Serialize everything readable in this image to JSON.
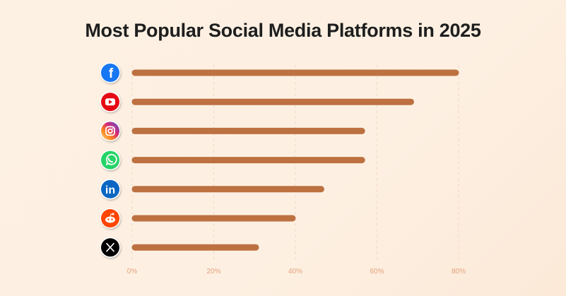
{
  "chart_data": {
    "type": "bar",
    "orientation": "horizontal",
    "title": "Most Popular Social Media Platforms in 2025",
    "xlabel": "",
    "ylabel": "",
    "xlim": [
      0,
      80
    ],
    "x_ticks": [
      "0%",
      "20%",
      "40%",
      "60%",
      "80%"
    ],
    "x_tick_values": [
      0,
      20,
      40,
      60,
      80
    ],
    "grid": "vertical dashed",
    "bar_color": "#bd7140",
    "categories": [
      {
        "icon": "facebook-icon",
        "color": "#1877f2"
      },
      {
        "icon": "youtube-icon",
        "color": "#e50914"
      },
      {
        "icon": "instagram-icon",
        "color": "#c13584"
      },
      {
        "icon": "whatsapp-icon",
        "color": "#25d366"
      },
      {
        "icon": "linkedin-icon",
        "color": "#0a66c2"
      },
      {
        "icon": "reddit-icon",
        "color": "#ff4500"
      },
      {
        "icon": "x-icon",
        "color": "#000000"
      }
    ],
    "values": [
      80,
      69,
      57,
      57,
      47,
      40,
      31
    ]
  }
}
